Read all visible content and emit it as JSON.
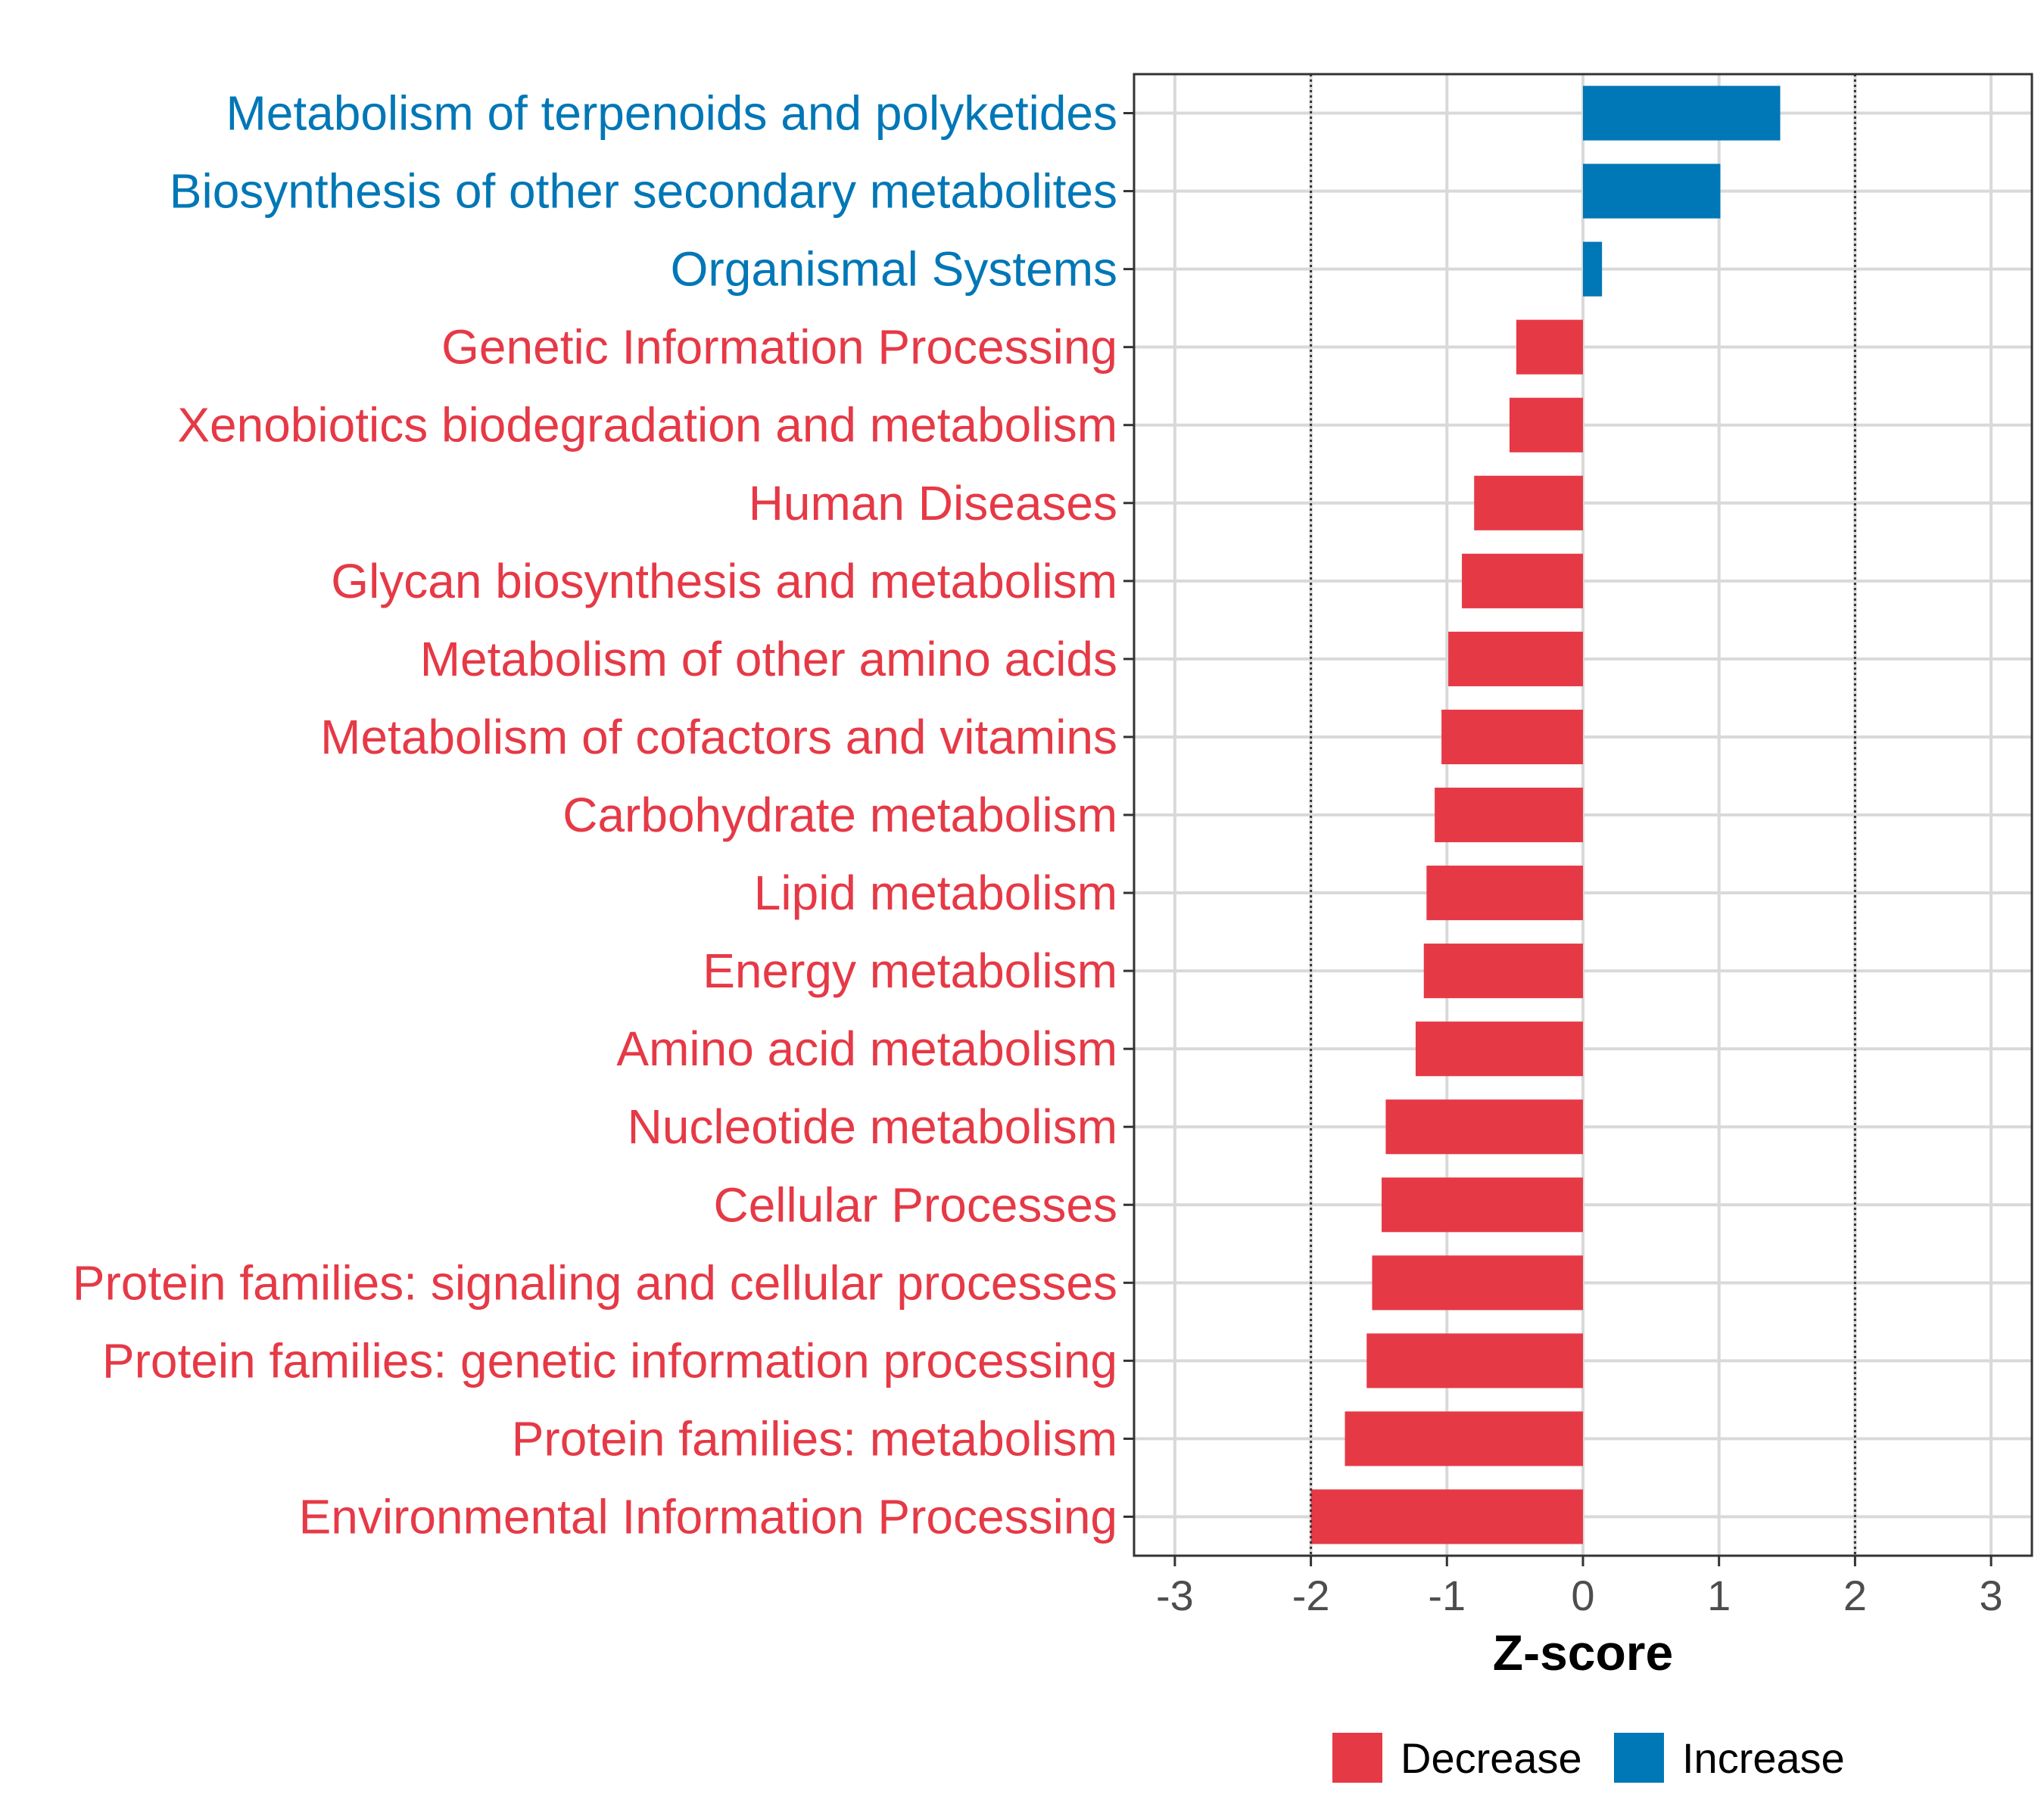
{
  "chart_data": {
    "type": "bar",
    "orientation": "horizontal",
    "xlabel": "Z-score",
    "xlim": [
      -3.3,
      3.3
    ],
    "xticks": [
      -3,
      -2,
      -1,
      0,
      1,
      2,
      3
    ],
    "reference_lines": [
      -2,
      2
    ],
    "grid": true,
    "colors": {
      "Decrease": "#E63946",
      "Increase": "#0077B6"
    },
    "legend": {
      "position": "bottom",
      "entries": [
        "Decrease",
        "Increase"
      ]
    },
    "bars": [
      {
        "category": "Metabolism of terpenoids and polyketides",
        "value": 1.45,
        "group": "Increase"
      },
      {
        "category": "Biosynthesis of other secondary metabolites",
        "value": 1.01,
        "group": "Increase"
      },
      {
        "category": "Organismal Systems",
        "value": 0.14,
        "group": "Increase"
      },
      {
        "category": "Genetic Information Processing",
        "value": -0.49,
        "group": "Decrease"
      },
      {
        "category": "Xenobiotics biodegradation and metabolism",
        "value": -0.54,
        "group": "Decrease"
      },
      {
        "category": "Human Diseases",
        "value": -0.8,
        "group": "Decrease"
      },
      {
        "category": "Glycan biosynthesis and metabolism",
        "value": -0.89,
        "group": "Decrease"
      },
      {
        "category": "Metabolism of other amino acids",
        "value": -0.99,
        "group": "Decrease"
      },
      {
        "category": "Metabolism of cofactors and vitamins",
        "value": -1.04,
        "group": "Decrease"
      },
      {
        "category": "Carbohydrate metabolism",
        "value": -1.09,
        "group": "Decrease"
      },
      {
        "category": "Lipid metabolism",
        "value": -1.15,
        "group": "Decrease"
      },
      {
        "category": "Energy metabolism",
        "value": -1.17,
        "group": "Decrease"
      },
      {
        "category": "Amino acid metabolism",
        "value": -1.23,
        "group": "Decrease"
      },
      {
        "category": "Nucleotide metabolism",
        "value": -1.45,
        "group": "Decrease"
      },
      {
        "category": "Cellular Processes",
        "value": -1.48,
        "group": "Decrease"
      },
      {
        "category": "Protein families: signaling and cellular processes",
        "value": -1.55,
        "group": "Decrease"
      },
      {
        "category": "Protein families: genetic information processing",
        "value": -1.59,
        "group": "Decrease"
      },
      {
        "category": "Protein families: metabolism",
        "value": -1.75,
        "group": "Decrease"
      },
      {
        "category": "Environmental Information Processing",
        "value": -2.0,
        "group": "Decrease"
      }
    ]
  }
}
